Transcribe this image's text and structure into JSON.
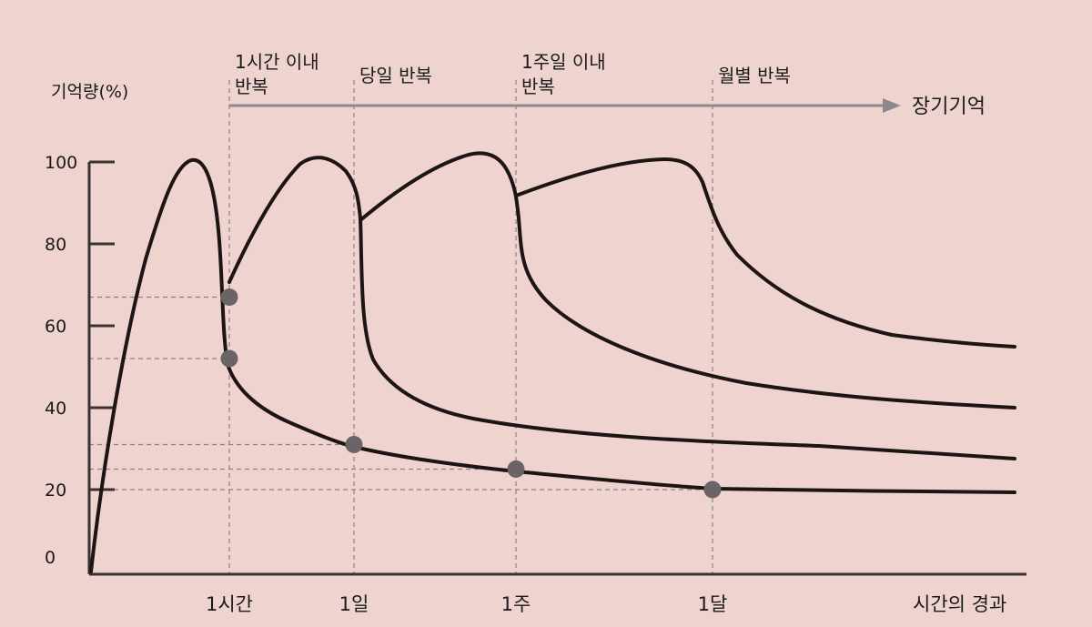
{
  "chart_data": {
    "type": "line",
    "ylabel": "기억량(%)",
    "xlabel": "시간의 경과",
    "ylim": [
      0,
      100
    ],
    "y_ticks": [
      "100",
      "80",
      "60",
      "40",
      "20",
      "0"
    ],
    "x_ticks": [
      "1시간",
      "1일",
      "1주",
      "1달"
    ],
    "phase_labels": [
      {
        "at": "1시간",
        "lines": [
          "1시간 이내",
          "반복"
        ]
      },
      {
        "at": "1일",
        "lines": [
          "당일 반복"
        ]
      },
      {
        "at": "1주",
        "lines": [
          "1주일 이내",
          "반복"
        ]
      },
      {
        "at": "1달",
        "lines": [
          "월별 반복"
        ]
      }
    ],
    "arrow_label": "장기기억",
    "series": [
      {
        "x": [
          "0",
          "~",
          "1시간",
          "1일",
          "1주",
          "1달",
          "end"
        ],
        "values": [
          0,
          100,
          52,
          31,
          25,
          20,
          20
        ]
      },
      {
        "x": [
          "1시간",
          "~",
          "1일",
          "1주",
          "end"
        ],
        "values": [
          67,
          101,
          85,
          37,
          28
        ]
      },
      {
        "x": [
          "1일",
          "~",
          "1주",
          "end"
        ],
        "values": [
          86,
          102,
          50,
          41
        ]
      },
      {
        "x": [
          "1주",
          "~",
          "1달",
          "end"
        ],
        "values": [
          92,
          101,
          90,
          56
        ]
      }
    ],
    "points": [
      {
        "x": "1시간",
        "y": 67
      },
      {
        "x": "1시간",
        "y": 52
      },
      {
        "x": "1일",
        "y": 31
      },
      {
        "x": "1주",
        "y": 25
      },
      {
        "x": "1달",
        "y": 20
      }
    ],
    "colors": {
      "background": "#efd3cf",
      "curve": "#1d1414",
      "point": "#6a6466",
      "arrow": "#8e8a8c"
    },
    "grid": false
  }
}
